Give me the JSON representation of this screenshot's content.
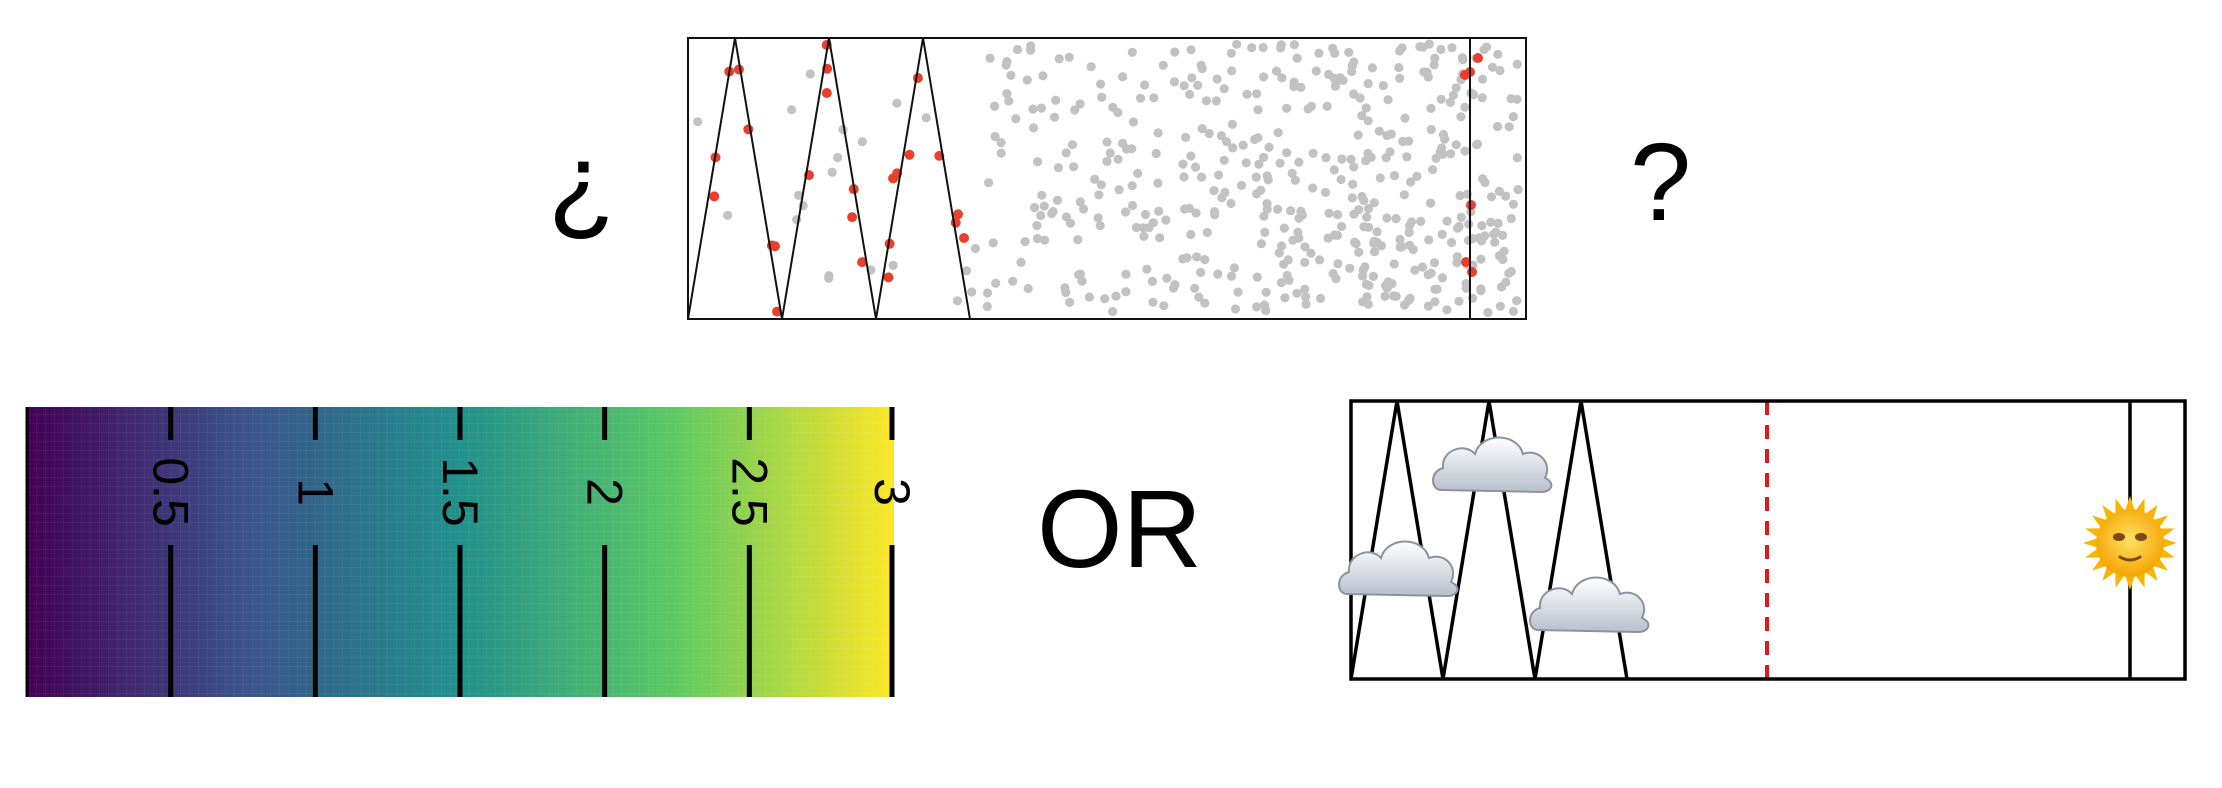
{
  "labels": {
    "open_question": "¿",
    "close_question": "?",
    "or_word": "OR"
  },
  "colors": {
    "sample_gray": "#c2c2c2",
    "sample_red": "#e8402c",
    "line": "#111111",
    "dashed_red": "#e01a1a",
    "viridis": [
      "#440154",
      "#3b528b",
      "#21918c",
      "#5ec962",
      "#fde725"
    ]
  },
  "icons": {
    "cloud": "cloud-icon",
    "sun": "sun-face-icon"
  },
  "colorbar": {
    "range": [
      0,
      3
    ],
    "ticks": [
      {
        "value": 0.5,
        "label": "0.5"
      },
      {
        "value": 1,
        "label": "1"
      },
      {
        "value": 1.5,
        "label": "1.5"
      },
      {
        "value": 2,
        "label": "2"
      },
      {
        "value": 2.5,
        "label": "2.5"
      },
      {
        "value": 3,
        "label": "3"
      }
    ]
  }
}
